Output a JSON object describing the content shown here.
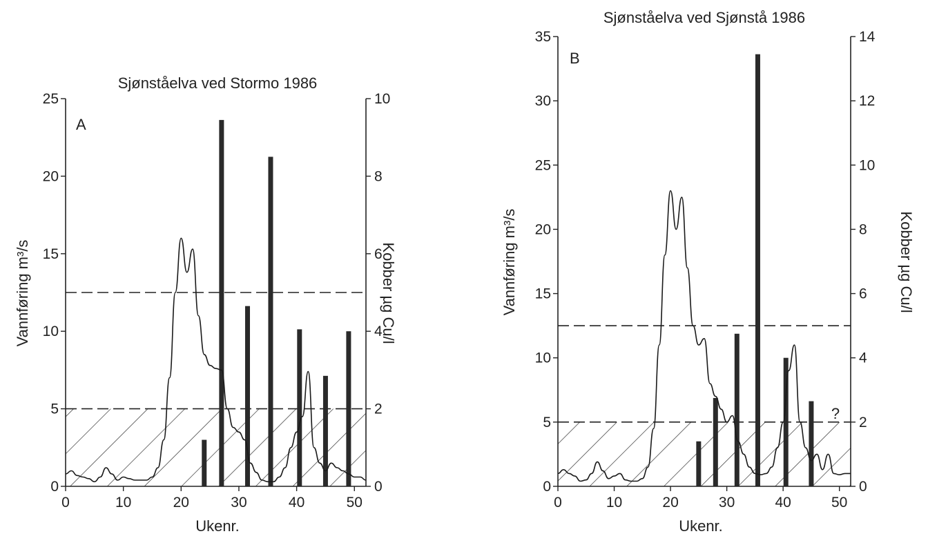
{
  "chart_data": [
    {
      "type": "bar",
      "panel": "A",
      "title": "Sjønståelva ved Stormo 1986",
      "xlabel": "Ukenr.",
      "ylabel": "Vannføring m³/s",
      "y2label": "Kobber µg Cu/l",
      "xlim": [
        0,
        52
      ],
      "ylim": [
        0,
        25
      ],
      "y2lim": [
        0,
        10
      ],
      "xticks": [
        "0",
        "10",
        "20",
        "30",
        "40",
        "50"
      ],
      "yticks": [
        "0",
        "5",
        "10",
        "15",
        "20",
        "25"
      ],
      "y2ticks": [
        "0",
        "2",
        "4",
        "6",
        "8",
        "10"
      ],
      "hatched_band": [
        0,
        5
      ],
      "dashed_lines_y2": [
        2,
        5
      ],
      "flow_series": {
        "x": [
          0,
          1,
          2,
          3,
          4,
          5,
          6,
          7,
          8,
          9,
          10,
          11,
          12,
          13,
          14,
          15,
          16,
          17,
          18,
          19,
          20,
          21,
          22,
          23,
          24,
          25,
          26,
          27,
          28,
          29,
          30,
          31,
          32,
          33,
          34,
          35,
          36,
          37,
          38,
          39,
          40,
          41,
          42,
          43,
          44,
          45,
          46,
          47,
          48,
          49,
          50,
          51,
          52
        ],
        "y": [
          0.8,
          1.0,
          0.7,
          0.6,
          0.5,
          0.3,
          0.6,
          1.2,
          0.8,
          0.4,
          0.6,
          0.5,
          0.4,
          0.4,
          0.4,
          0.6,
          1.2,
          3.0,
          7.0,
          12.5,
          16.0,
          13.8,
          15.3,
          11.0,
          8.5,
          7.8,
          7.6,
          7.5,
          5.0,
          3.8,
          3.5,
          3.0,
          1.5,
          0.9,
          0.4,
          0.3,
          0.3,
          0.6,
          1.2,
          2.5,
          3.5,
          4.5,
          7.4,
          2.5,
          1.5,
          1.0,
          1.5,
          1.2,
          1.0,
          0.8,
          0.6,
          0.6,
          0.4
        ]
      },
      "copper_bars": {
        "weeks": [
          24,
          27,
          31.5,
          35.5,
          40.5,
          45,
          49
        ],
        "values": [
          1.2,
          9.45,
          4.65,
          8.5,
          4.05,
          2.85,
          4.0
        ]
      }
    },
    {
      "type": "bar",
      "panel": "B",
      "title": "Sjønståelva ved Sjønstå 1986",
      "xlabel": "Ukenr.",
      "ylabel": "Vannføring m³/s",
      "y2label": "Kobber µg Cu/l",
      "xlim": [
        0,
        52
      ],
      "ylim": [
        0,
        35
      ],
      "y2lim": [
        0,
        14
      ],
      "xticks": [
        "0",
        "10",
        "20",
        "30",
        "40",
        "50"
      ],
      "yticks": [
        "0",
        "5",
        "10",
        "15",
        "20",
        "25",
        "30",
        "35"
      ],
      "y2ticks": [
        "0",
        "2",
        "4",
        "6",
        "8",
        "10",
        "12",
        "14"
      ],
      "hatched_band": [
        0,
        5
      ],
      "dashed_lines_y2": [
        2,
        5
      ],
      "question_mark": "?",
      "flow_series": {
        "x": [
          0,
          1,
          2,
          3,
          4,
          5,
          6,
          7,
          8,
          9,
          10,
          11,
          12,
          13,
          14,
          15,
          16,
          17,
          18,
          19,
          20,
          21,
          22,
          23,
          24,
          25,
          26,
          27,
          28,
          29,
          30,
          31,
          32,
          33,
          34,
          35,
          36,
          37,
          38,
          39,
          40,
          41,
          42,
          43,
          44,
          45,
          46,
          47,
          48,
          49,
          50,
          51,
          52
        ],
        "y": [
          1.0,
          1.3,
          1.0,
          0.8,
          0.4,
          0.5,
          1.0,
          1.9,
          1.2,
          0.6,
          0.8,
          1.0,
          0.5,
          0.4,
          0.4,
          0.6,
          1.5,
          4.5,
          11.0,
          18.0,
          23.0,
          20.0,
          22.5,
          17.0,
          12.5,
          11.0,
          11.5,
          8.0,
          7.0,
          6.0,
          5.0,
          5.5,
          3.5,
          2.5,
          1.5,
          1.0,
          0.9,
          1.0,
          1.5,
          3.0,
          5.0,
          9.0,
          11.0,
          5.0,
          3.0,
          2.0,
          2.5,
          1.3,
          2.5,
          1.0,
          0.9,
          1.0,
          1.0
        ]
      },
      "copper_bars": {
        "weeks": [
          25,
          28,
          31.8,
          35.5,
          40.5,
          45
        ],
        "values": [
          1.4,
          2.75,
          4.75,
          13.45,
          4.0,
          2.65
        ]
      }
    }
  ]
}
